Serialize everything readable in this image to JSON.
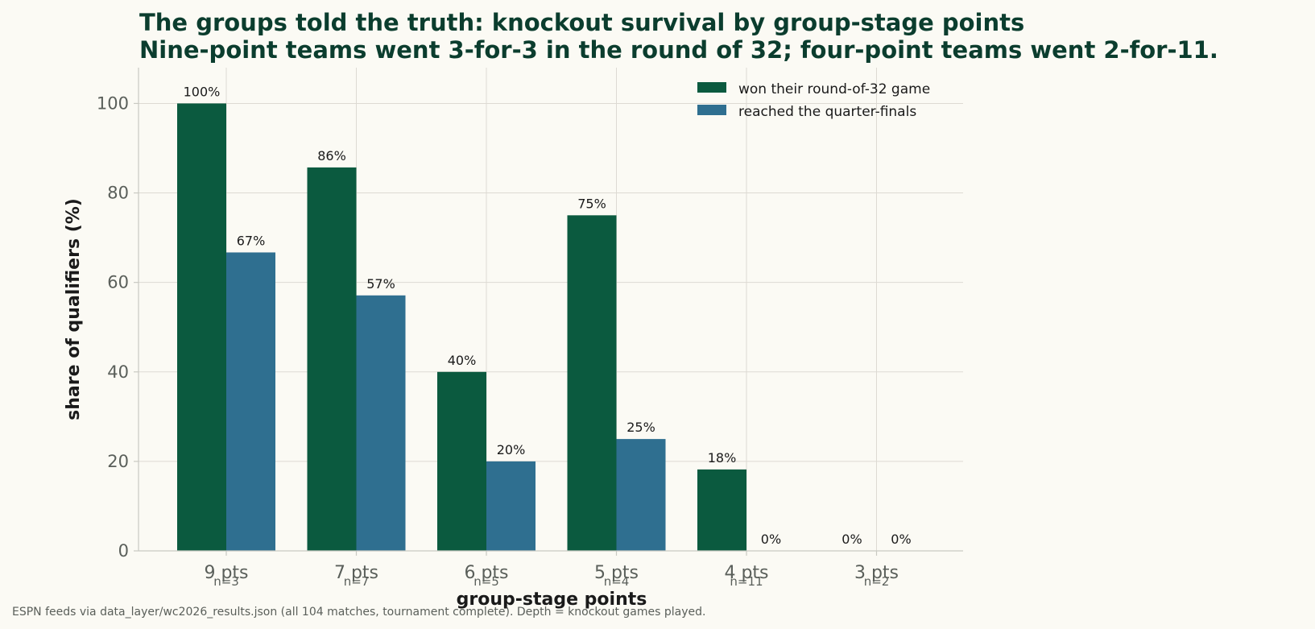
{
  "chart_data": {
    "type": "bar",
    "title": "The groups told the truth: knockout survival by group-stage points",
    "subtitle": "Nine-point teams went 3-for-3 in the round of 32; four-point teams went 2-for-11.",
    "xlabel": "group-stage points",
    "ylabel": "share of qualifiers (%)",
    "ylim": [
      0,
      108
    ],
    "yticks": [
      0,
      20,
      40,
      60,
      80,
      100
    ],
    "categories": [
      "9 pts",
      "7 pts",
      "6 pts",
      "5 pts",
      "4 pts",
      "3 pts"
    ],
    "n_labels": [
      "n=3",
      "n=7",
      "n=5",
      "n=4",
      "n=11",
      "n=2"
    ],
    "series": [
      {
        "name": "won their round-of-32 game",
        "color": "#0b5a3f",
        "values": [
          100,
          85.7,
          40,
          75,
          18.2,
          0
        ],
        "labels": [
          "100%",
          "86%",
          "40%",
          "75%",
          "18%",
          "0%"
        ]
      },
      {
        "name": "reached the quarter-finals",
        "color": "#2f6f90",
        "values": [
          66.7,
          57.1,
          20,
          25,
          0,
          0
        ],
        "labels": [
          "67%",
          "57%",
          "20%",
          "25%",
          "0%",
          "0%"
        ]
      }
    ],
    "grid": true,
    "legend": "top-right",
    "footnote": "ESPN feeds via data_layer/wc2026_results.json (all 104 matches, tournament complete). Depth = knockout games played."
  }
}
